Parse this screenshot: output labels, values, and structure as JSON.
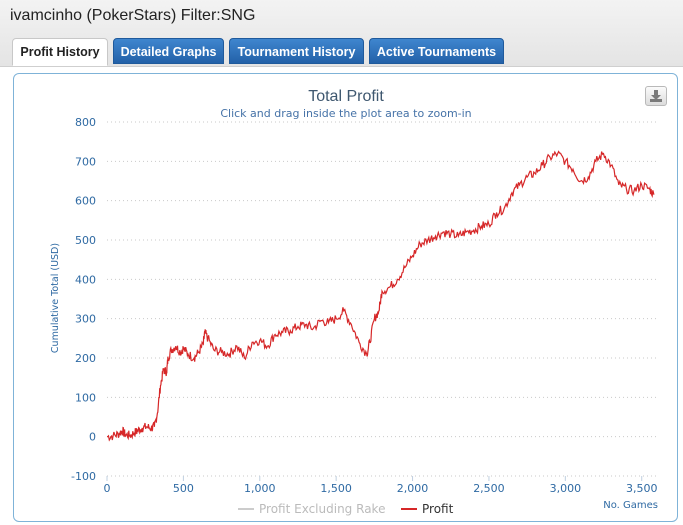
{
  "page": {
    "title": "ivamcinho (PokerStars) Filter:SNG"
  },
  "tabs": [
    {
      "label": "Profit History",
      "active": true
    },
    {
      "label": "Detailed Graphs",
      "active": false
    },
    {
      "label": "Tournament History",
      "active": false
    },
    {
      "label": "Active Tournaments",
      "active": false
    }
  ],
  "export_icon": "download-icon",
  "colors": {
    "tab_blue": "#2a6cb5",
    "profit_line": "#d62728",
    "excluded_line": "#cccccc",
    "axis_text": "#2f6aa3"
  },
  "chart_data": {
    "type": "line",
    "title": "Total Profit",
    "subtitle": "Click and drag inside the plot area to zoom-in",
    "xlabel": "No. Games",
    "ylabel": "Cumulative Total (USD)",
    "xlim": [
      0,
      3600
    ],
    "ylim": [
      -100,
      800
    ],
    "x_ticks": [
      "0",
      "500",
      "1,000",
      "1,500",
      "2,000",
      "2,500",
      "3,000",
      "3,500"
    ],
    "y_ticks": [
      "-100",
      "0",
      "100",
      "200",
      "300",
      "400",
      "500",
      "600",
      "700",
      "800"
    ],
    "grid": true,
    "legend_position": "bottom",
    "series": [
      {
        "name": "Profit Excluding Rake",
        "visible": false,
        "points": []
      },
      {
        "name": "Profit",
        "visible": true,
        "points": [
          [
            0,
            0
          ],
          [
            40,
            2
          ],
          [
            80,
            8
          ],
          [
            100,
            15
          ],
          [
            120,
            5
          ],
          [
            150,
            3
          ],
          [
            180,
            10
          ],
          [
            200,
            15
          ],
          [
            230,
            22
          ],
          [
            260,
            25
          ],
          [
            290,
            22
          ],
          [
            310,
            25
          ],
          [
            330,
            60
          ],
          [
            350,
            130
          ],
          [
            370,
            170
          ],
          [
            390,
            165
          ],
          [
            400,
            200
          ],
          [
            420,
            220
          ],
          [
            450,
            230
          ],
          [
            480,
            215
          ],
          [
            500,
            225
          ],
          [
            530,
            210
          ],
          [
            570,
            200
          ],
          [
            600,
            215
          ],
          [
            630,
            235
          ],
          [
            640,
            265
          ],
          [
            660,
            250
          ],
          [
            700,
            220
          ],
          [
            750,
            215
          ],
          [
            800,
            210
          ],
          [
            850,
            230
          ],
          [
            900,
            200
          ],
          [
            950,
            240
          ],
          [
            1000,
            245
          ],
          [
            1050,
            230
          ],
          [
            1100,
            260
          ],
          [
            1150,
            265
          ],
          [
            1200,
            270
          ],
          [
            1250,
            280
          ],
          [
            1300,
            285
          ],
          [
            1350,
            275
          ],
          [
            1400,
            295
          ],
          [
            1450,
            290
          ],
          [
            1500,
            300
          ],
          [
            1550,
            320
          ],
          [
            1600,
            285
          ],
          [
            1650,
            240
          ],
          [
            1700,
            210
          ],
          [
            1720,
            240
          ],
          [
            1750,
            300
          ],
          [
            1780,
            320
          ],
          [
            1800,
            370
          ],
          [
            1850,
            380
          ],
          [
            1900,
            400
          ],
          [
            1950,
            430
          ],
          [
            2000,
            460
          ],
          [
            2050,
            490
          ],
          [
            2100,
            500
          ],
          [
            2150,
            510
          ],
          [
            2200,
            520
          ],
          [
            2250,
            515
          ],
          [
            2300,
            510
          ],
          [
            2350,
            520
          ],
          [
            2400,
            525
          ],
          [
            2450,
            535
          ],
          [
            2500,
            540
          ],
          [
            2550,
            570
          ],
          [
            2600,
            580
          ],
          [
            2650,
            620
          ],
          [
            2700,
            640
          ],
          [
            2750,
            660
          ],
          [
            2800,
            670
          ],
          [
            2850,
            690
          ],
          [
            2900,
            710
          ],
          [
            2950,
            720
          ],
          [
            3000,
            700
          ],
          [
            3050,
            680
          ],
          [
            3100,
            650
          ],
          [
            3150,
            660
          ],
          [
            3200,
            700
          ],
          [
            3250,
            720
          ],
          [
            3300,
            690
          ],
          [
            3350,
            640
          ],
          [
            3400,
            630
          ],
          [
            3450,
            625
          ],
          [
            3500,
            640
          ],
          [
            3550,
            630
          ],
          [
            3580,
            615
          ]
        ]
      }
    ]
  }
}
